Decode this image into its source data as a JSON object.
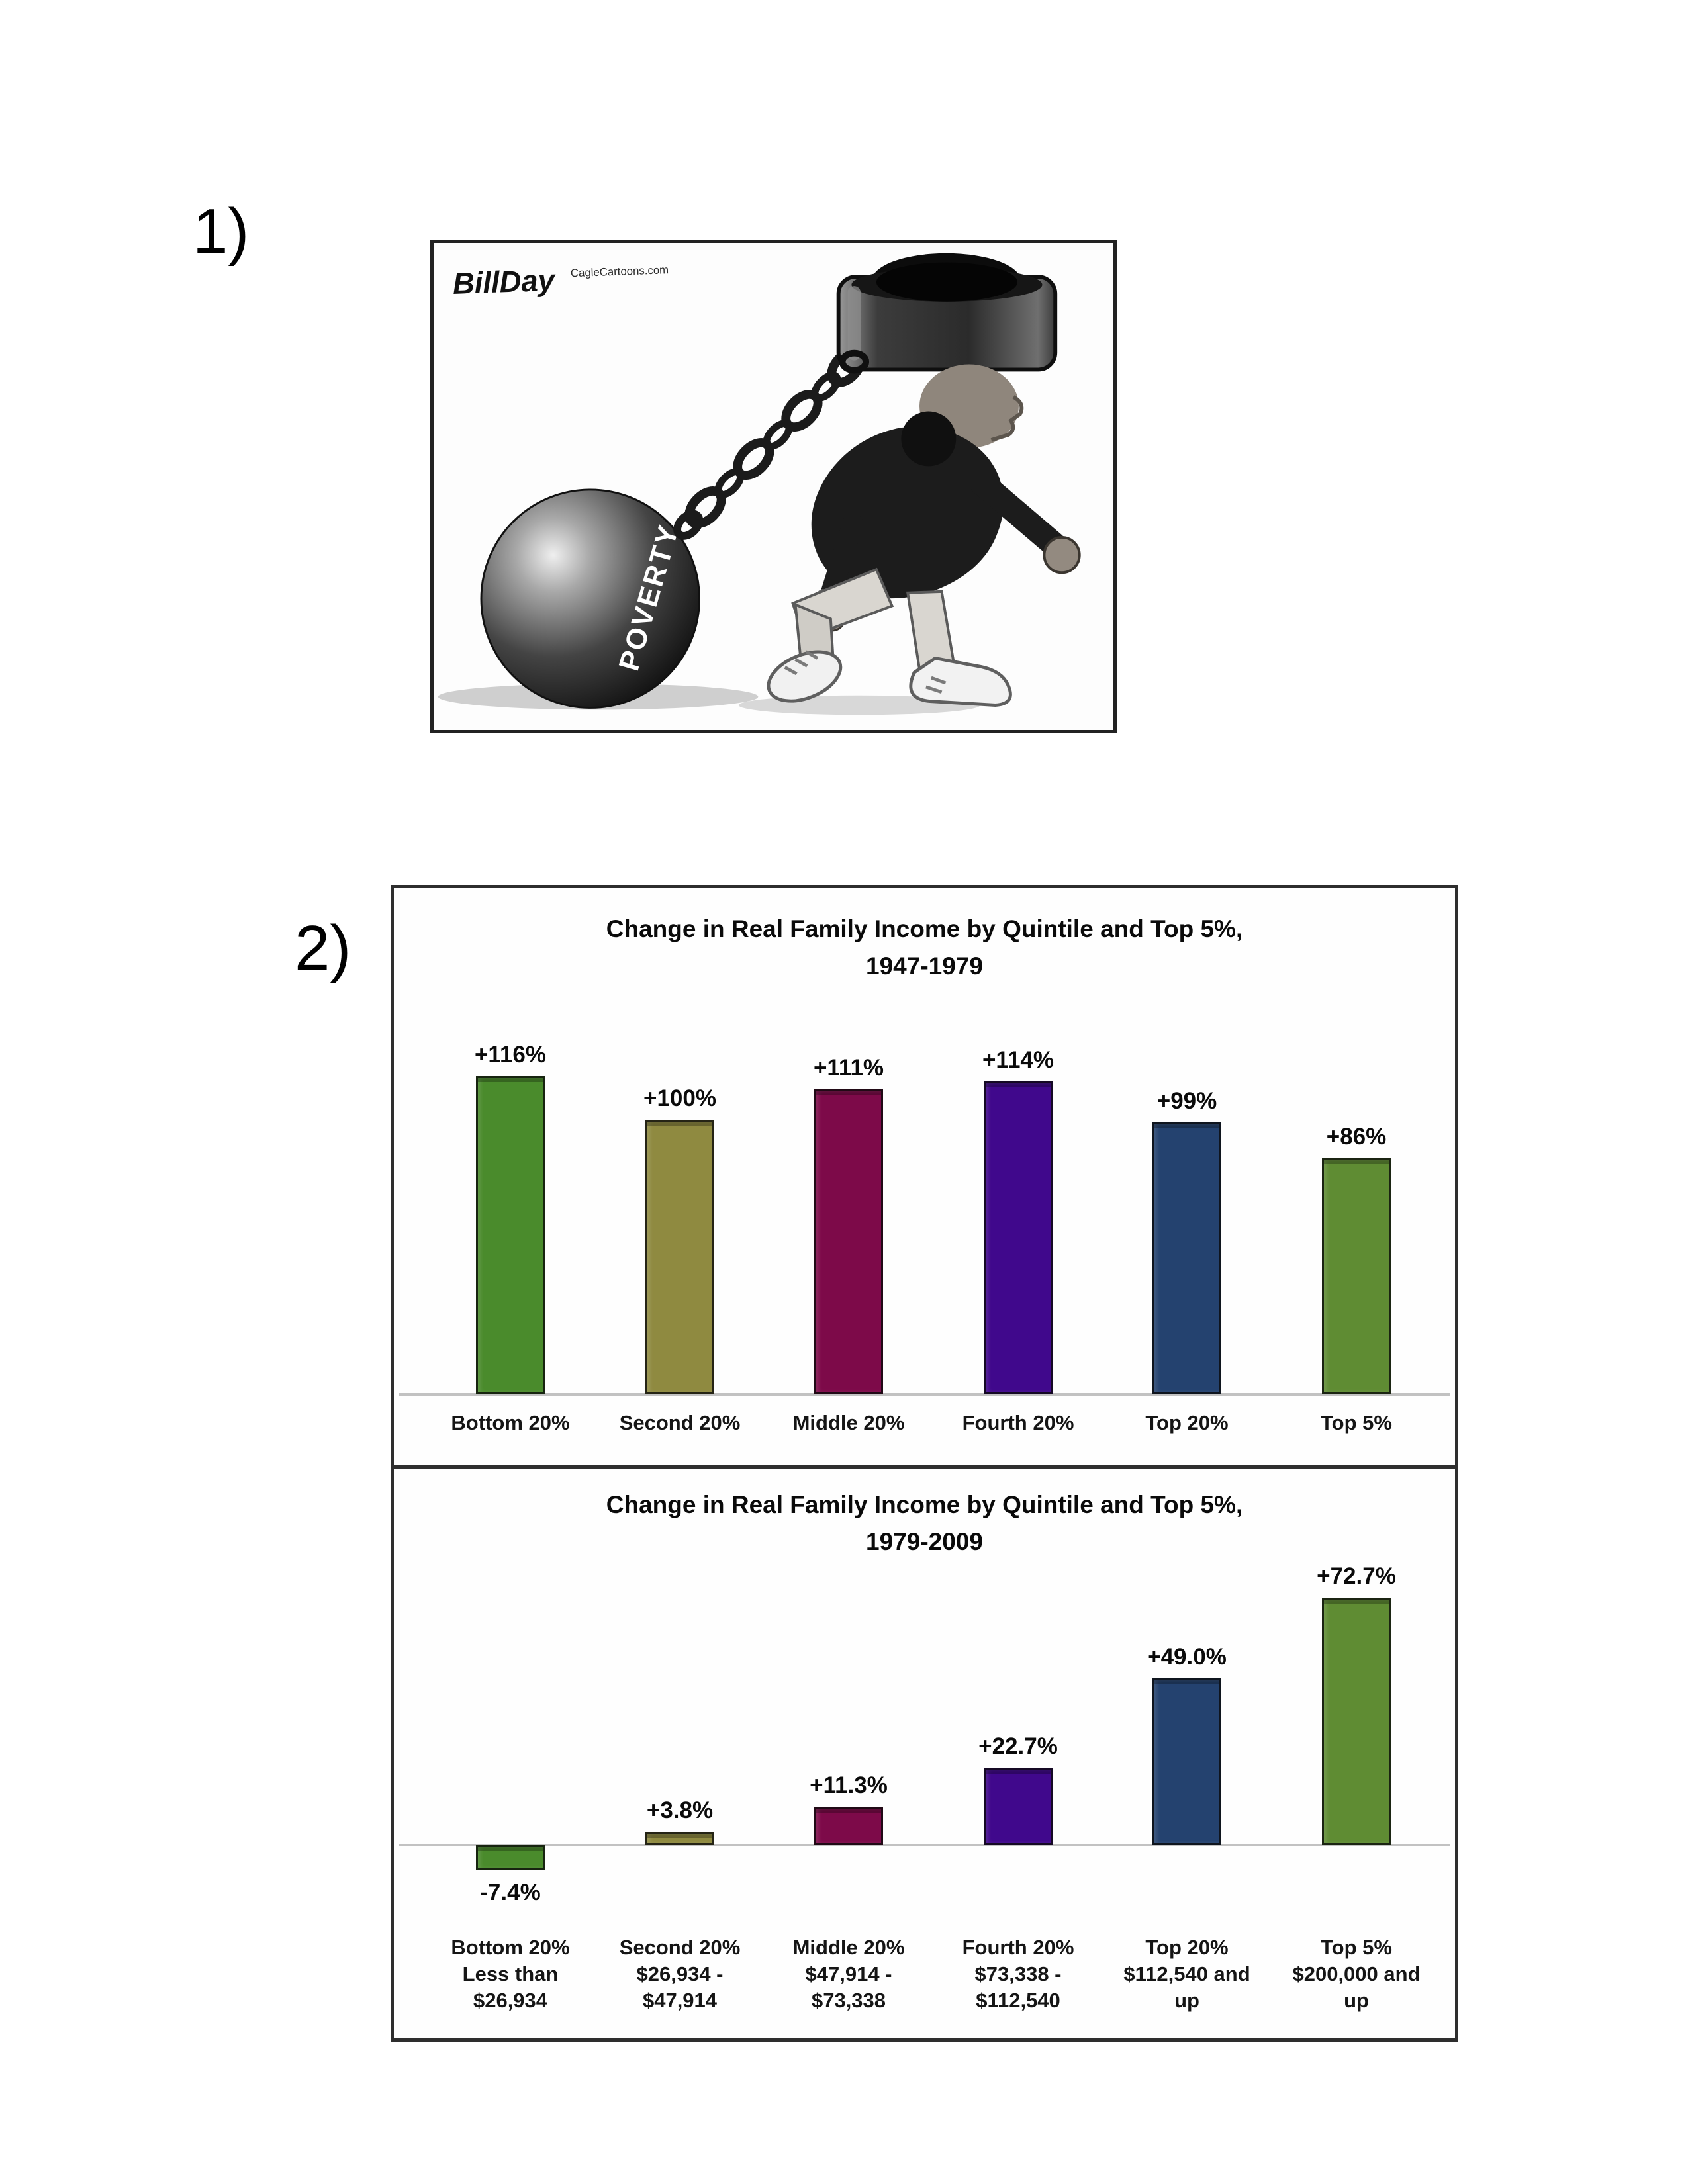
{
  "page": {
    "q1_label": "1)",
    "q2_label": "2)",
    "background_color": "#ffffff"
  },
  "cartoon": {
    "signature": "BillDay",
    "signature_site": "CagleCartoons.com",
    "ball_label": "POVERTY",
    "style": "grayscale editorial cartoon: child running while shackled by a head cuff chained to a giant ball labeled POVERTY"
  },
  "chart_data": [
    {
      "type": "bar",
      "title": "Change in Real Family Income by Quintile and Top 5%,",
      "subtitle": "1947-1979",
      "categories": [
        "Bottom 20%",
        "Second 20%",
        "Middle 20%",
        "Fourth 20%",
        "Top 20%",
        "Top 5%"
      ],
      "values": [
        116,
        100,
        111,
        114,
        99,
        86
      ],
      "value_labels": [
        "+116%",
        "+100%",
        "+111%",
        "+114%",
        "+99%",
        "+86%"
      ],
      "bar_colors": [
        "#4a8b2c",
        "#8f8a40",
        "#7d0a49",
        "#40088c",
        "#24426f",
        "#5f8c33"
      ],
      "xlabel": "",
      "ylabel": "",
      "ylim": [
        0,
        130
      ],
      "grid": false,
      "legend": "none",
      "axis_line_color": "#c2c2c2"
    },
    {
      "type": "bar",
      "title": "Change in Real Family Income by Quintile and Top 5%,",
      "subtitle": "1979-2009",
      "categories": [
        "Bottom 20%\nLess than\n$26,934",
        "Second 20%\n$26,934 -\n$47,914",
        "Middle 20%\n$47,914 -\n$73,338",
        "Fourth 20%\n$73,338 -\n$112,540",
        "Top 20%\n$112,540 and\nup",
        "Top 5%\n$200,000 and\nup"
      ],
      "values": [
        -7.4,
        3.8,
        11.3,
        22.7,
        49.0,
        72.7
      ],
      "value_labels": [
        "-7.4%",
        "+3.8%",
        "+11.3%",
        "+22.7%",
        "+49.0%",
        "+72.7%"
      ],
      "bar_colors": [
        "#4a8b2c",
        "#8f8a40",
        "#7d0a49",
        "#40088c",
        "#24426f",
        "#5f8c33"
      ],
      "xlabel": "",
      "ylabel": "",
      "ylim": [
        -15,
        80
      ],
      "grid": false,
      "legend": "none",
      "axis_line_color": "#c2c2c2"
    }
  ]
}
